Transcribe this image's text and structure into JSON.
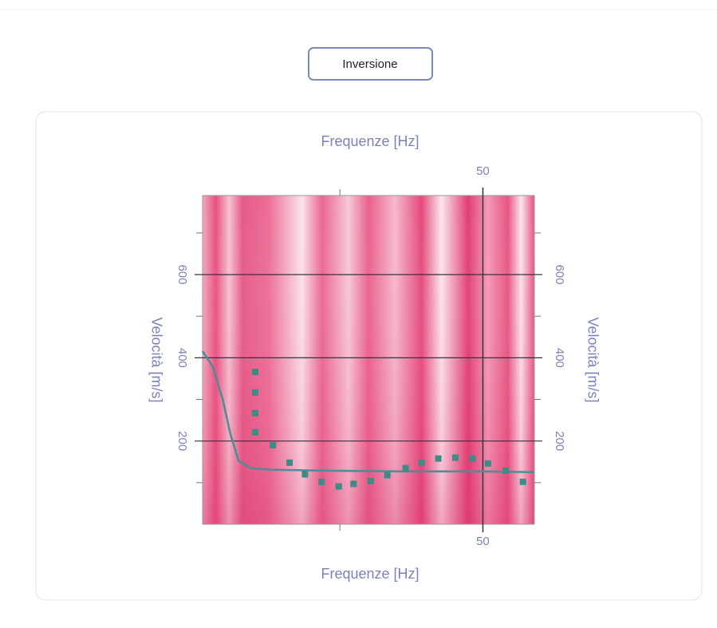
{
  "button": {
    "label": "Inversione"
  },
  "chart_data": {
    "type": "scatter",
    "xlabel_top": "Frequenze [Hz]",
    "xlabel": "Frequenze [Hz]",
    "ylabel": "Velocità [m/s]",
    "ylabel_right": "Velocità [m/s]",
    "xlim": [
      1,
      59
    ],
    "ylim": [
      0,
      790
    ],
    "xticks": [
      50
    ],
    "x_minor_ticks": [
      25
    ],
    "yticks": [
      200,
      400,
      600
    ],
    "y_minor_ticks": [
      100,
      300,
      500,
      700
    ],
    "grid": true,
    "grid_color": "#333344",
    "points": {
      "color": "#3d8b86",
      "x": [
        10.2,
        10.2,
        10.2,
        10.2,
        13.3,
        16.2,
        18.9,
        21.8,
        24.8,
        27.4,
        30.4,
        33.3,
        36.5,
        39.3,
        42.2,
        45.2,
        48.2,
        50.9,
        54.0,
        57.0
      ],
      "values": [
        366,
        317,
        267,
        221,
        190,
        148,
        120,
        102,
        91,
        97,
        104,
        118,
        135,
        148,
        158,
        160,
        158,
        146,
        129,
        102
      ]
    },
    "curve": {
      "color": "#4a8f95",
      "x": [
        1,
        2.8,
        4.5,
        5.9,
        7.3,
        9.4,
        12.9,
        21.3,
        35.2,
        49.2,
        59
      ],
      "values": [
        416,
        378,
        301,
        215,
        152,
        135,
        131,
        129,
        127,
        127,
        125
      ]
    }
  }
}
